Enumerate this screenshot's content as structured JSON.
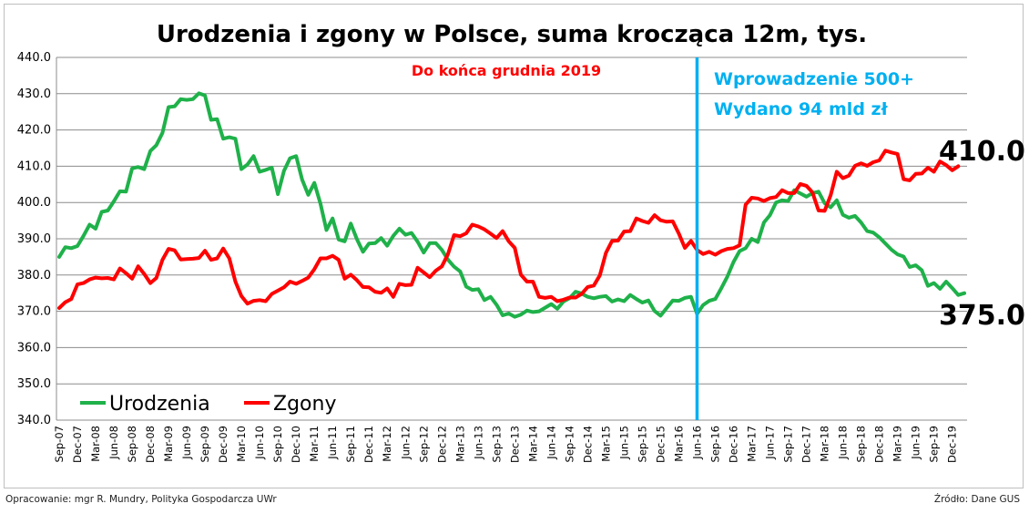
{
  "chart_data": {
    "type": "line",
    "title": "Urodzenia i zgony w Polsce, suma krocząca 12m, tys.",
    "ylim": [
      340,
      440
    ],
    "yticks": [
      "340.0",
      "350.0",
      "360.0",
      "370.0",
      "380.0",
      "390.0",
      "400.0",
      "410.0",
      "420.0",
      "430.0",
      "440.0"
    ],
    "grid": "horizontal",
    "legend_position": "bottom-left",
    "x_tick_labels": [
      "Sep-07",
      "Dec-07",
      "Mar-08",
      "Jun-08",
      "Sep-08",
      "Dec-08",
      "Mar-09",
      "Jun-09",
      "Sep-09",
      "Dec-09",
      "Mar-10",
      "Jun-10",
      "Sep-10",
      "Dec-10",
      "Mar-11",
      "Jun-11",
      "Sep-11",
      "Dec-11",
      "Mar-12",
      "Jun-12",
      "Sep-12",
      "Dec-12",
      "Mar-13",
      "Jun-13",
      "Sep-13",
      "Dec-13",
      "Mar-14",
      "Jun-14",
      "Sep-14",
      "Dec-14",
      "Mar-15",
      "Jun-15",
      "Sep-15",
      "Dec-15",
      "Mar-16",
      "Jun-16",
      "Sep-16",
      "Dec-16",
      "Mar-17",
      "Jun-17",
      "Sep-17",
      "Dec-17",
      "Mar-18",
      "Jun-18",
      "Sep-18",
      "Dec-18",
      "Mar-19",
      "Jun-19",
      "Sep-19",
      "Dec-19"
    ],
    "x_start": "Sep-07",
    "x_end": "Dec-19",
    "series": [
      {
        "name": "Urodzenia",
        "color": "#1fb14a",
        "values": [
          385.0,
          387.7,
          387.4,
          388.0,
          390.8,
          393.9,
          392.8,
          397.4,
          397.8,
          400.3,
          403.1,
          403.0,
          409.4,
          409.8,
          409.2,
          414.2,
          415.8,
          419.2,
          426.3,
          426.5,
          428.5,
          428.3,
          428.5,
          430.1,
          429.5,
          422.8,
          423.0,
          417.6,
          418.0,
          417.6,
          409.2,
          410.5,
          412.8,
          408.5,
          409.0,
          409.6,
          402.3,
          408.7,
          412.2,
          412.8,
          406.3,
          402.1,
          405.4,
          399.7,
          392.4,
          395.6,
          389.8,
          389.3,
          394.2,
          389.9,
          386.4,
          388.7,
          388.8,
          390.2,
          388.1,
          390.8,
          392.8,
          391.1,
          391.6,
          389.2,
          386.2,
          388.8,
          388.8,
          386.9,
          384.2,
          382.3,
          381.0,
          376.8,
          375.9,
          376.1,
          373.1,
          374.0,
          371.8,
          368.9,
          369.4,
          368.5,
          369.1,
          370.2,
          369.8,
          370.0,
          371.0,
          372.0,
          370.7,
          372.7,
          373.6,
          375.4,
          374.9,
          374.0,
          373.6,
          374.0,
          374.2,
          372.7,
          373.3,
          372.8,
          374.5,
          373.4,
          372.4,
          373.0,
          370.1,
          368.8,
          370.9,
          373.0,
          372.9,
          373.7,
          374.0,
          369.3,
          371.7,
          372.9,
          373.4,
          376.4,
          379.6,
          383.6,
          386.6,
          387.4,
          390.0,
          389.1,
          394.5,
          396.5,
          400.0,
          400.6,
          400.4,
          403.4,
          402.5,
          401.6,
          402.6,
          403.0,
          399.8,
          398.7,
          400.6,
          396.6,
          395.8,
          396.3,
          394.5,
          392.1,
          391.7,
          390.4,
          388.7,
          387.0,
          385.7,
          385.1,
          382.2,
          382.7,
          381.3,
          377.0,
          377.8,
          376.2,
          378.2,
          376.4,
          374.5,
          375.0
        ]
      },
      {
        "name": "Zgony",
        "color": "#ff0000",
        "values": [
          370.9,
          372.5,
          373.4,
          377.4,
          377.8,
          378.8,
          379.3,
          379.1,
          379.2,
          378.8,
          381.8,
          380.5,
          379.0,
          382.4,
          380.3,
          377.8,
          379.2,
          384.2,
          387.2,
          386.8,
          384.3,
          384.4,
          384.5,
          384.7,
          386.7,
          384.2,
          384.6,
          387.3,
          384.6,
          378.2,
          374.2,
          372.1,
          372.9,
          373.1,
          372.8,
          374.8,
          375.7,
          376.6,
          378.2,
          377.6,
          378.4,
          379.3,
          381.6,
          384.6,
          384.6,
          385.3,
          384.2,
          379.0,
          380.1,
          378.6,
          376.7,
          376.6,
          375.4,
          375.1,
          376.3,
          374.0,
          377.6,
          377.2,
          377.3,
          382.0,
          380.7,
          379.4,
          381.2,
          382.4,
          385.8,
          391.0,
          390.7,
          391.5,
          393.9,
          393.4,
          392.6,
          391.4,
          390.2,
          392.1,
          389.3,
          387.5,
          380.1,
          378.2,
          378.2,
          374.0,
          373.7,
          374.0,
          372.8,
          373.2,
          373.8,
          373.8,
          374.8,
          376.7,
          377.1,
          379.9,
          386.1,
          389.4,
          389.5,
          392.0,
          392.1,
          395.6,
          394.9,
          394.4,
          396.5,
          395.1,
          394.7,
          394.8,
          391.4,
          387.5,
          389.4,
          386.9,
          385.8,
          386.4,
          385.6,
          386.6,
          387.2,
          387.4,
          388.2,
          399.4,
          401.3,
          401.1,
          400.4,
          401.2,
          401.5,
          403.4,
          402.6,
          402.6,
          405.1,
          404.6,
          402.8,
          397.8,
          397.7,
          402.0,
          408.5,
          406.7,
          407.4,
          410.1,
          410.8,
          410.1,
          411.1,
          411.6,
          414.3,
          413.8,
          413.4,
          406.4,
          406.1,
          407.9,
          408.0,
          409.6,
          408.5,
          411.3,
          410.3,
          408.9,
          410.0
        ]
      }
    ],
    "annotations": {
      "policy_marker_x": "Jun-16",
      "note_red": "Do końca grudnia 2019",
      "note_blue_1": "Wprowadzenie 500+",
      "note_blue_2": "Wydano 94 mld zł",
      "end_label_zgony": "410.0",
      "end_label_urodzenia": "375.0",
      "marker_color": "#00b0f0"
    }
  },
  "footer": {
    "left": "Opracowanie: mgr R. Mundry, Polityka Gospodarcza UWr",
    "right": "Źródło: Dane GUS"
  }
}
